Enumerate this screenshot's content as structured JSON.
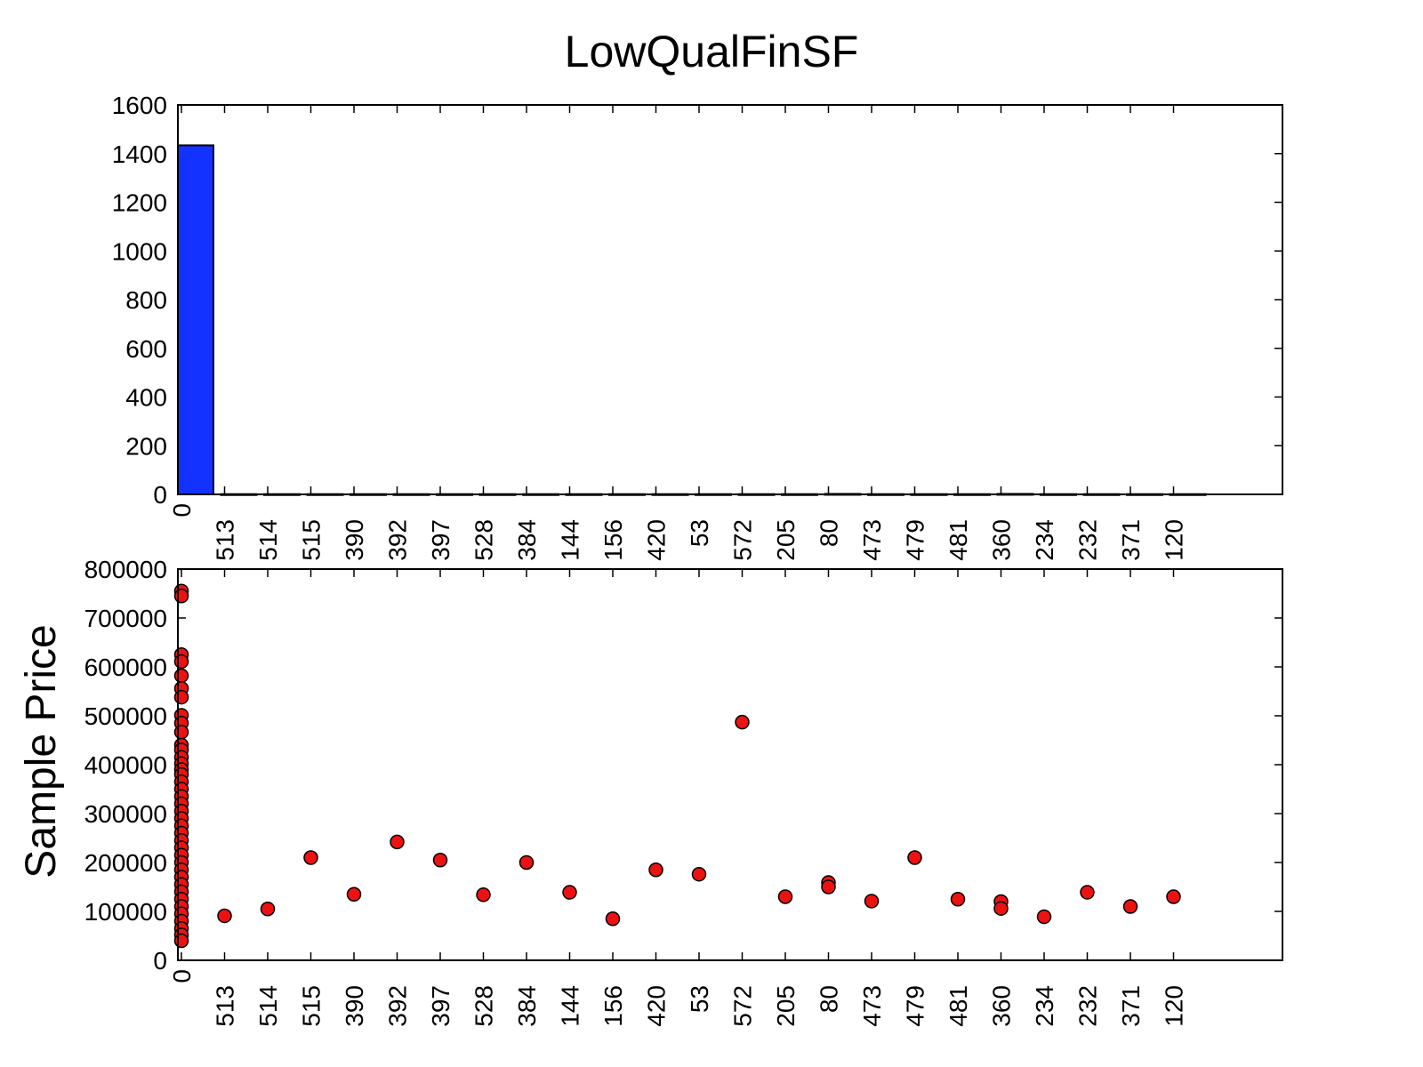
{
  "chart_data": [
    {
      "type": "bar",
      "title": "LowQualFinSF",
      "xlabel": "",
      "ylabel": "",
      "categories": [
        "0",
        "513",
        "514",
        "515",
        "390",
        "392",
        "397",
        "528",
        "384",
        "144",
        "156",
        "420",
        "53",
        "572",
        "205",
        "80",
        "473",
        "479",
        "481",
        "360",
        "234",
        "232",
        "371",
        "120"
      ],
      "values": [
        1434,
        1,
        1,
        1,
        1,
        1,
        1,
        1,
        1,
        1,
        1,
        1,
        1,
        1,
        1,
        2,
        1,
        1,
        1,
        2,
        1,
        1,
        1,
        1
      ],
      "ylim": [
        0,
        1600
      ],
      "yticks": [
        0,
        200,
        400,
        600,
        800,
        1000,
        1200,
        1400,
        1600
      ],
      "colors": {
        "bar": "#1432ff",
        "edge": "#000000"
      }
    },
    {
      "type": "scatter",
      "xlabel": "",
      "ylabel": "Sample Price",
      "categories": [
        "0",
        "513",
        "514",
        "515",
        "390",
        "392",
        "397",
        "528",
        "384",
        "144",
        "156",
        "420",
        "53",
        "572",
        "205",
        "80",
        "473",
        "479",
        "481",
        "360",
        "234",
        "232",
        "371",
        "120"
      ],
      "points": [
        {
          "x": "0",
          "y": 755000
        },
        {
          "x": "0",
          "y": 745000
        },
        {
          "x": "0",
          "y": 625000
        },
        {
          "x": "0",
          "y": 611000
        },
        {
          "x": "0",
          "y": 582000
        },
        {
          "x": "0",
          "y": 556000
        },
        {
          "x": "0",
          "y": 538000
        },
        {
          "x": "0",
          "y": 501000
        },
        {
          "x": "0",
          "y": 485000
        },
        {
          "x": "0",
          "y": 466500
        },
        {
          "x": "0",
          "y": 440000
        },
        {
          "x": "0",
          "y": 430000
        },
        {
          "x": "0",
          "y": 415000
        },
        {
          "x": "0",
          "y": 402000
        },
        {
          "x": "0",
          "y": 390000
        },
        {
          "x": "0",
          "y": 380000
        },
        {
          "x": "0",
          "y": 365000
        },
        {
          "x": "0",
          "y": 350000
        },
        {
          "x": "0",
          "y": 335000
        },
        {
          "x": "0",
          "y": 320000
        },
        {
          "x": "0",
          "y": 305000
        },
        {
          "x": "0",
          "y": 290000
        },
        {
          "x": "0",
          "y": 275000
        },
        {
          "x": "0",
          "y": 260000
        },
        {
          "x": "0",
          "y": 245000
        },
        {
          "x": "0",
          "y": 230000
        },
        {
          "x": "0",
          "y": 215000
        },
        {
          "x": "0",
          "y": 200000
        },
        {
          "x": "0",
          "y": 185000
        },
        {
          "x": "0",
          "y": 170000
        },
        {
          "x": "0",
          "y": 155000
        },
        {
          "x": "0",
          "y": 140000
        },
        {
          "x": "0",
          "y": 125000
        },
        {
          "x": "0",
          "y": 110000
        },
        {
          "x": "0",
          "y": 95000
        },
        {
          "x": "0",
          "y": 80000
        },
        {
          "x": "0",
          "y": 65000
        },
        {
          "x": "0",
          "y": 52000
        },
        {
          "x": "0",
          "y": 40000
        },
        {
          "x": "513",
          "y": 91000
        },
        {
          "x": "514",
          "y": 105000
        },
        {
          "x": "515",
          "y": 210000
        },
        {
          "x": "390",
          "y": 135000
        },
        {
          "x": "392",
          "y": 242000
        },
        {
          "x": "397",
          "y": 205000
        },
        {
          "x": "528",
          "y": 134000
        },
        {
          "x": "384",
          "y": 200000
        },
        {
          "x": "144",
          "y": 139000
        },
        {
          "x": "156",
          "y": 85000
        },
        {
          "x": "420",
          "y": 185000
        },
        {
          "x": "53",
          "y": 176000
        },
        {
          "x": "572",
          "y": 487000
        },
        {
          "x": "205",
          "y": 130000
        },
        {
          "x": "80",
          "y": 159000
        },
        {
          "x": "80",
          "y": 150000
        },
        {
          "x": "473",
          "y": 121000
        },
        {
          "x": "479",
          "y": 210000
        },
        {
          "x": "481",
          "y": 125000
        },
        {
          "x": "360",
          "y": 120000
        },
        {
          "x": "360",
          "y": 106000
        },
        {
          "x": "234",
          "y": 89000
        },
        {
          "x": "232",
          "y": 139000
        },
        {
          "x": "371",
          "y": 110000
        },
        {
          "x": "120",
          "y": 130000
        }
      ],
      "ylim": [
        0,
        800000
      ],
      "yticks": [
        0,
        100000,
        200000,
        300000,
        400000,
        500000,
        600000,
        700000,
        800000
      ],
      "colors": {
        "marker": "#ee1111",
        "edge": "#000000"
      }
    }
  ]
}
